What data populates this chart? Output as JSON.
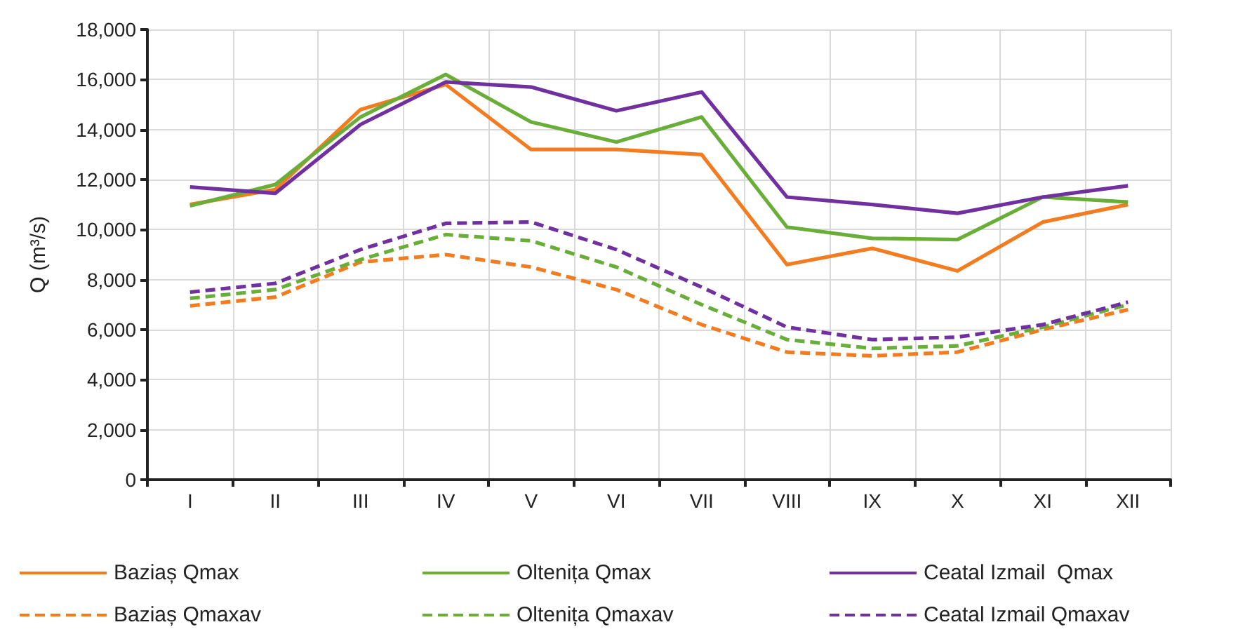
{
  "chart_data": {
    "type": "line",
    "ylabel": "Q (m³/s)",
    "categories": [
      "I",
      "II",
      "III",
      "IV",
      "V",
      "VI",
      "VII",
      "VIII",
      "IX",
      "X",
      "XI",
      "XII"
    ],
    "series": [
      {
        "name": "Baziaș Qmax",
        "color": "#f47c20",
        "line_style": "solid",
        "values": [
          11000,
          11600,
          14800,
          15800,
          13200,
          13200,
          13000,
          8600,
          9250,
          8350,
          10300,
          11000
        ]
      },
      {
        "name": "Oltenița Qmax",
        "color": "#6aae3a",
        "line_style": "solid",
        "values": [
          10950,
          11800,
          14500,
          16200,
          14300,
          13500,
          14500,
          10100,
          9650,
          9600,
          11300,
          11100
        ]
      },
      {
        "name": "Ceatal Izmail  Qmax",
        "color": "#7030a0",
        "line_style": "solid",
        "values": [
          11700,
          11450,
          14200,
          15900,
          15700,
          14750,
          15500,
          11300,
          11000,
          10650,
          11300,
          11750
        ]
      },
      {
        "name": "Baziaș Qmaxav",
        "color": "#f47c20",
        "line_style": "dashed",
        "values": [
          6950,
          7300,
          8700,
          9000,
          8500,
          7600,
          6200,
          5100,
          4950,
          5100,
          6000,
          6800
        ]
      },
      {
        "name": "Oltenița Qmaxav",
        "color": "#6aae3a",
        "line_style": "dashed",
        "values": [
          7250,
          7600,
          8800,
          9800,
          9550,
          8500,
          7000,
          5600,
          5250,
          5350,
          6100,
          7000
        ]
      },
      {
        "name": "Ceatal Izmail Qmaxav",
        "color": "#7030a0",
        "line_style": "dashed",
        "values": [
          7500,
          7850,
          9200,
          10250,
          10300,
          9200,
          7700,
          6100,
          5600,
          5700,
          6200,
          7100
        ]
      }
    ],
    "ylim": [
      0,
      18000
    ],
    "yticks": [
      0,
      {
        "value": 2000,
        "label": "2,000"
      },
      {
        "value": 4000,
        "label": "4,000"
      },
      {
        "value": 6000,
        "label": "6,000"
      },
      {
        "value": 8000,
        "label": "8,000"
      },
      {
        "value": 10000,
        "label": "10,000"
      },
      {
        "value": 12000,
        "label": "12,000"
      },
      {
        "value": 14000,
        "label": "14,000"
      },
      {
        "value": 16000,
        "label": "16,000"
      },
      {
        "value": 18000,
        "label": "18,000"
      }
    ],
    "grid": true,
    "legend": "bottom",
    "marker": "none"
  }
}
